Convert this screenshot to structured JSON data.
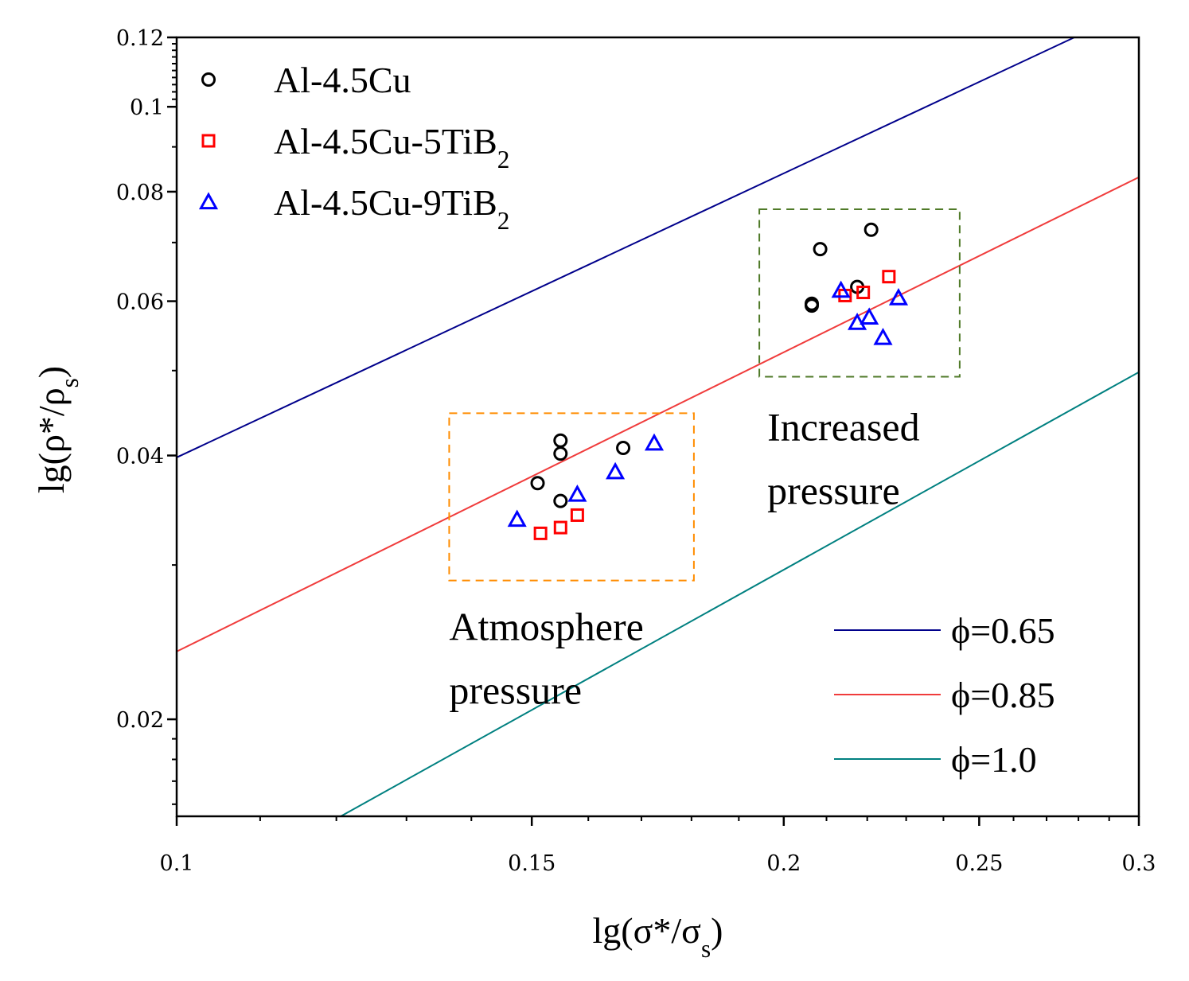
{
  "chart_data": {
    "type": "scatter",
    "xscale": "log",
    "yscale": "log",
    "xlim": [
      0.1,
      0.3
    ],
    "ylim": [
      0.0155,
      0.12
    ],
    "xlabel": {
      "main": "lg(σ*/σ",
      "sub": "s",
      "close": ")"
    },
    "ylabel": {
      "main": "lg(ρ*/ρ",
      "sub": "s",
      "close": ")"
    },
    "x_ticks": [
      {
        "value": 0.1,
        "label": "0.1"
      },
      {
        "value": 0.15,
        "label": "0.15"
      },
      {
        "value": 0.2,
        "label": "0.2"
      },
      {
        "value": 0.25,
        "label": "0.25"
      },
      {
        "value": 0.3,
        "label": "0.3"
      }
    ],
    "y_ticks": [
      {
        "value": 0.02,
        "label": "0.02"
      },
      {
        "value": 0.04,
        "label": "0.04"
      },
      {
        "value": 0.06,
        "label": "0.06"
      },
      {
        "value": 0.08,
        "label": "0.08"
      },
      {
        "value": 0.1,
        "label": "0.1"
      },
      {
        "value": 0.12,
        "label": "0.12"
      }
    ],
    "y_minor_ticks": [
      0.016,
      0.017,
      0.018,
      0.019,
      0.03,
      0.05,
      0.07,
      0.09,
      0.102,
      0.104,
      0.106,
      0.108,
      0.11,
      0.112,
      0.114,
      0.116,
      0.118
    ],
    "x_minor_ticks": [
      0.11,
      0.12,
      0.13,
      0.14,
      0.16,
      0.17,
      0.18,
      0.19,
      0.21,
      0.22,
      0.23,
      0.24,
      0.26,
      0.27,
      0.28,
      0.29
    ],
    "series": [
      {
        "name": "Al-4.5Cu",
        "sub": "",
        "marker": "circle",
        "color": "#000000",
        "points": [
          [
            0.151,
            0.0372
          ],
          [
            0.155,
            0.0416
          ],
          [
            0.155,
            0.0402
          ],
          [
            0.155,
            0.0355
          ],
          [
            0.1665,
            0.0408
          ],
          [
            0.2065,
            0.0596
          ],
          [
            0.2065,
            0.0593
          ],
          [
            0.2085,
            0.0688
          ],
          [
            0.2175,
            0.0623
          ],
          [
            0.221,
            0.0724
          ]
        ]
      },
      {
        "name": "Al-4.5Cu-5TiB",
        "sub": "2",
        "marker": "square",
        "color": "#ff0000",
        "points": [
          [
            0.1515,
            0.0326
          ],
          [
            0.155,
            0.0331
          ],
          [
            0.158,
            0.0342
          ],
          [
            0.2145,
            0.0609
          ],
          [
            0.219,
            0.0614
          ],
          [
            0.2255,
            0.064
          ]
        ]
      },
      {
        "name": "Al-4.5Cu-9TiB",
        "sub": "2",
        "marker": "triangle",
        "color": "#0000ff",
        "points": [
          [
            0.1475,
            0.0338
          ],
          [
            0.158,
            0.0361
          ],
          [
            0.165,
            0.0383
          ],
          [
            0.1725,
            0.0413
          ],
          [
            0.2135,
            0.0617
          ],
          [
            0.2175,
            0.0567
          ],
          [
            0.2205,
            0.0575
          ],
          [
            0.224,
            0.0545
          ],
          [
            0.228,
            0.0605
          ]
        ]
      }
    ],
    "lines": [
      {
        "name": "ϕ=0.65",
        "color": "#00008b",
        "points": [
          [
            0.1,
            0.0398
          ],
          [
            0.2787,
            0.12
          ]
        ]
      },
      {
        "name": "ϕ=0.85",
        "color": "#f03c3c",
        "points": [
          [
            0.1,
            0.0239
          ],
          [
            0.3,
            0.0831
          ]
        ]
      },
      {
        "name": "ϕ=1.0",
        "color": "#008080",
        "points": [
          [
            0.1206,
            0.0155
          ],
          [
            0.3,
            0.0498
          ]
        ]
      }
    ],
    "annotations": [
      {
        "line1": "Increased",
        "line2": "pressure",
        "color": "#4f7a28",
        "box_x": [
          0.1945,
          0.2445
        ],
        "box_y": [
          0.0492,
          0.0764
        ]
      },
      {
        "line1": "Atmosphere",
        "line2": "pressure",
        "color": "#ff8c00",
        "box_x": [
          0.1365,
          0.1805
        ],
        "box_y": [
          0.0288,
          0.0447
        ]
      }
    ],
    "legend_markers_position": "top-left",
    "legend_lines_position": "bottom-right"
  }
}
